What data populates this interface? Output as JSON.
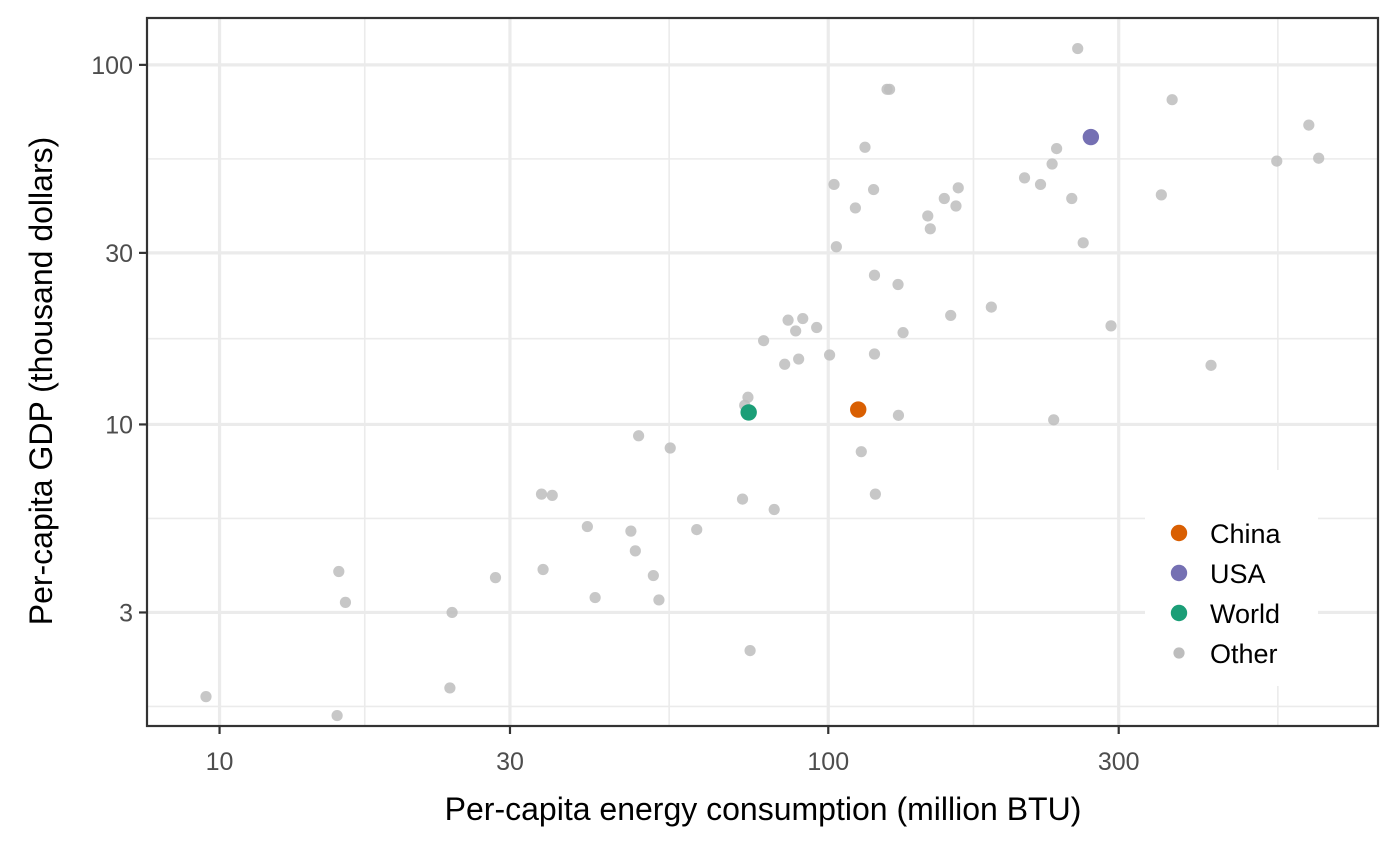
{
  "chart_data": {
    "type": "scatter",
    "xlabel": "Per-capita energy consumption (million BTU)",
    "ylabel": "Per-capita GDP (thousand dollars)",
    "x_scale": "log10",
    "y_scale": "log10",
    "xlim": [
      7.6,
      800
    ],
    "ylim": [
      1.45,
      135
    ],
    "x_ticks": [
      10,
      30,
      100,
      300
    ],
    "x_tick_labels": [
      "10",
      "30",
      "100",
      "300"
    ],
    "y_ticks": [
      3,
      10,
      30,
      100
    ],
    "y_tick_labels": [
      "3",
      "10",
      "30",
      "100"
    ],
    "grid": true,
    "legend_position": "bottom-right",
    "legend": [
      {
        "key": "China",
        "label": "China",
        "color": "#d95f02"
      },
      {
        "key": "USA",
        "label": "USA",
        "color": "#7570b3"
      },
      {
        "key": "World",
        "label": "World",
        "color": "#1b9e77"
      },
      {
        "key": "Other",
        "label": "Other",
        "color": "#bdbdbd"
      }
    ],
    "series": [
      {
        "name": "China",
        "color": "#d95f02",
        "points": [
          {
            "x": 112,
            "y": 11.0
          }
        ]
      },
      {
        "name": "USA",
        "color": "#7570b3",
        "points": [
          {
            "x": 270,
            "y": 63
          }
        ]
      },
      {
        "name": "World",
        "color": "#1b9e77",
        "points": [
          {
            "x": 74,
            "y": 10.8
          }
        ]
      },
      {
        "name": "Other",
        "color": "#bdbdbd",
        "points": [
          {
            "x": 9.5,
            "y": 1.75
          },
          {
            "x": 15.6,
            "y": 1.55
          },
          {
            "x": 15.7,
            "y": 3.9
          },
          {
            "x": 16.1,
            "y": 3.2
          },
          {
            "x": 23.9,
            "y": 1.85
          },
          {
            "x": 24.1,
            "y": 3.0
          },
          {
            "x": 28.4,
            "y": 3.75
          },
          {
            "x": 34.0,
            "y": 3.95
          },
          {
            "x": 33.8,
            "y": 6.4
          },
          {
            "x": 35.2,
            "y": 6.35
          },
          {
            "x": 40.2,
            "y": 5.2
          },
          {
            "x": 41.4,
            "y": 3.3
          },
          {
            "x": 47.4,
            "y": 5.05
          },
          {
            "x": 48.2,
            "y": 4.45
          },
          {
            "x": 48.8,
            "y": 9.3
          },
          {
            "x": 51.6,
            "y": 3.8
          },
          {
            "x": 52.7,
            "y": 3.25
          },
          {
            "x": 55.0,
            "y": 8.6
          },
          {
            "x": 60.8,
            "y": 5.1
          },
          {
            "x": 72.3,
            "y": 6.2
          },
          {
            "x": 72.9,
            "y": 11.3
          },
          {
            "x": 73.8,
            "y": 11.9
          },
          {
            "x": 74.4,
            "y": 2.35
          },
          {
            "x": 78.3,
            "y": 17.1
          },
          {
            "x": 81.5,
            "y": 5.8
          },
          {
            "x": 84.8,
            "y": 14.7
          },
          {
            "x": 85.9,
            "y": 19.5
          },
          {
            "x": 88.4,
            "y": 18.2
          },
          {
            "x": 89.4,
            "y": 15.2
          },
          {
            "x": 90.8,
            "y": 19.7
          },
          {
            "x": 95.7,
            "y": 18.6
          },
          {
            "x": 100.5,
            "y": 15.6
          },
          {
            "x": 102.2,
            "y": 46.5
          },
          {
            "x": 103.1,
            "y": 31.2
          },
          {
            "x": 110.8,
            "y": 40.0
          },
          {
            "x": 113.3,
            "y": 8.4
          },
          {
            "x": 114.9,
            "y": 59.0
          },
          {
            "x": 118.7,
            "y": 45.0
          },
          {
            "x": 119.1,
            "y": 26.0
          },
          {
            "x": 119.1,
            "y": 15.7
          },
          {
            "x": 119.5,
            "y": 6.4
          },
          {
            "x": 124.9,
            "y": 85.5
          },
          {
            "x": 126.1,
            "y": 85.5
          },
          {
            "x": 130.2,
            "y": 24.5
          },
          {
            "x": 130.4,
            "y": 10.6
          },
          {
            "x": 132.7,
            "y": 18.0
          },
          {
            "x": 145.7,
            "y": 38.0
          },
          {
            "x": 147.1,
            "y": 35.0
          },
          {
            "x": 155.1,
            "y": 42.5
          },
          {
            "x": 158.9,
            "y": 20.1
          },
          {
            "x": 162.1,
            "y": 40.5
          },
          {
            "x": 163.5,
            "y": 45.5
          },
          {
            "x": 185.3,
            "y": 21.2
          },
          {
            "x": 210.1,
            "y": 48.5
          },
          {
            "x": 223.2,
            "y": 46.5
          },
          {
            "x": 233.2,
            "y": 53.0
          },
          {
            "x": 234.6,
            "y": 10.3
          },
          {
            "x": 237.2,
            "y": 58.5
          },
          {
            "x": 251.2,
            "y": 42.5
          },
          {
            "x": 256.9,
            "y": 111.0
          },
          {
            "x": 262.3,
            "y": 32.0
          },
          {
            "x": 291.4,
            "y": 18.8
          },
          {
            "x": 352.5,
            "y": 43.5
          },
          {
            "x": 367.2,
            "y": 80.0
          },
          {
            "x": 425.4,
            "y": 14.6
          },
          {
            "x": 545.5,
            "y": 54.0
          },
          {
            "x": 615.8,
            "y": 68.0
          },
          {
            "x": 639.2,
            "y": 55.0
          }
        ]
      }
    ]
  }
}
